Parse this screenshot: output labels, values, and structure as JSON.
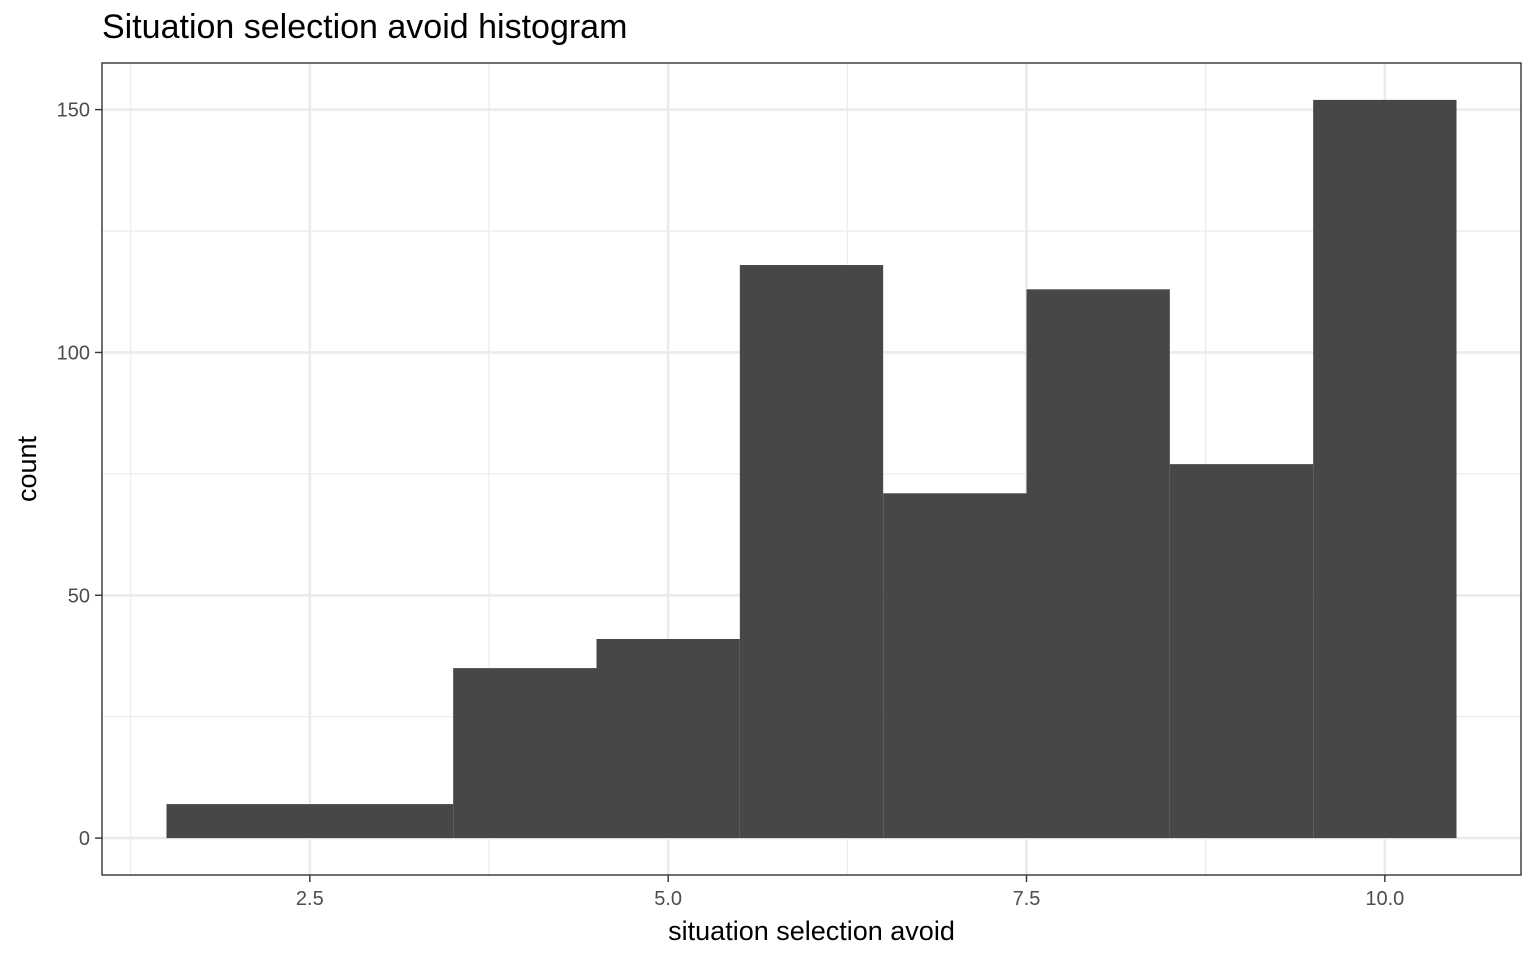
{
  "chart_data": {
    "type": "histogram",
    "title": "Situation selection avoid histogram",
    "xlabel": "situation selection avoid",
    "ylabel": "count",
    "bins": [
      {
        "x0": 1.5,
        "x1": 3.5,
        "count": 7
      },
      {
        "x0": 3.5,
        "x1": 4.5,
        "count": 35
      },
      {
        "x0": 4.5,
        "x1": 5.5,
        "count": 41
      },
      {
        "x0": 5.5,
        "x1": 6.5,
        "count": 118
      },
      {
        "x0": 6.5,
        "x1": 7.5,
        "count": 71
      },
      {
        "x0": 7.5,
        "x1": 8.5,
        "count": 113
      },
      {
        "x0": 8.5,
        "x1": 9.5,
        "count": 77
      },
      {
        "x0": 9.5,
        "x1": 10.5,
        "count": 152
      }
    ],
    "x_ticks": [
      2.5,
      5.0,
      7.5,
      10.0
    ],
    "x_tick_labels": [
      "2.5",
      "5.0",
      "7.5",
      "10.0"
    ],
    "y_ticks": [
      0,
      50,
      100,
      150
    ],
    "y_tick_labels": [
      "0",
      "50",
      "100",
      "150"
    ],
    "xlim": [
      1.05,
      10.95
    ],
    "ylim": [
      -7.6,
      159.6
    ],
    "grid": true,
    "bar_color": "#474747",
    "grid_color": "#ebebeb",
    "border_color": "#333333"
  }
}
